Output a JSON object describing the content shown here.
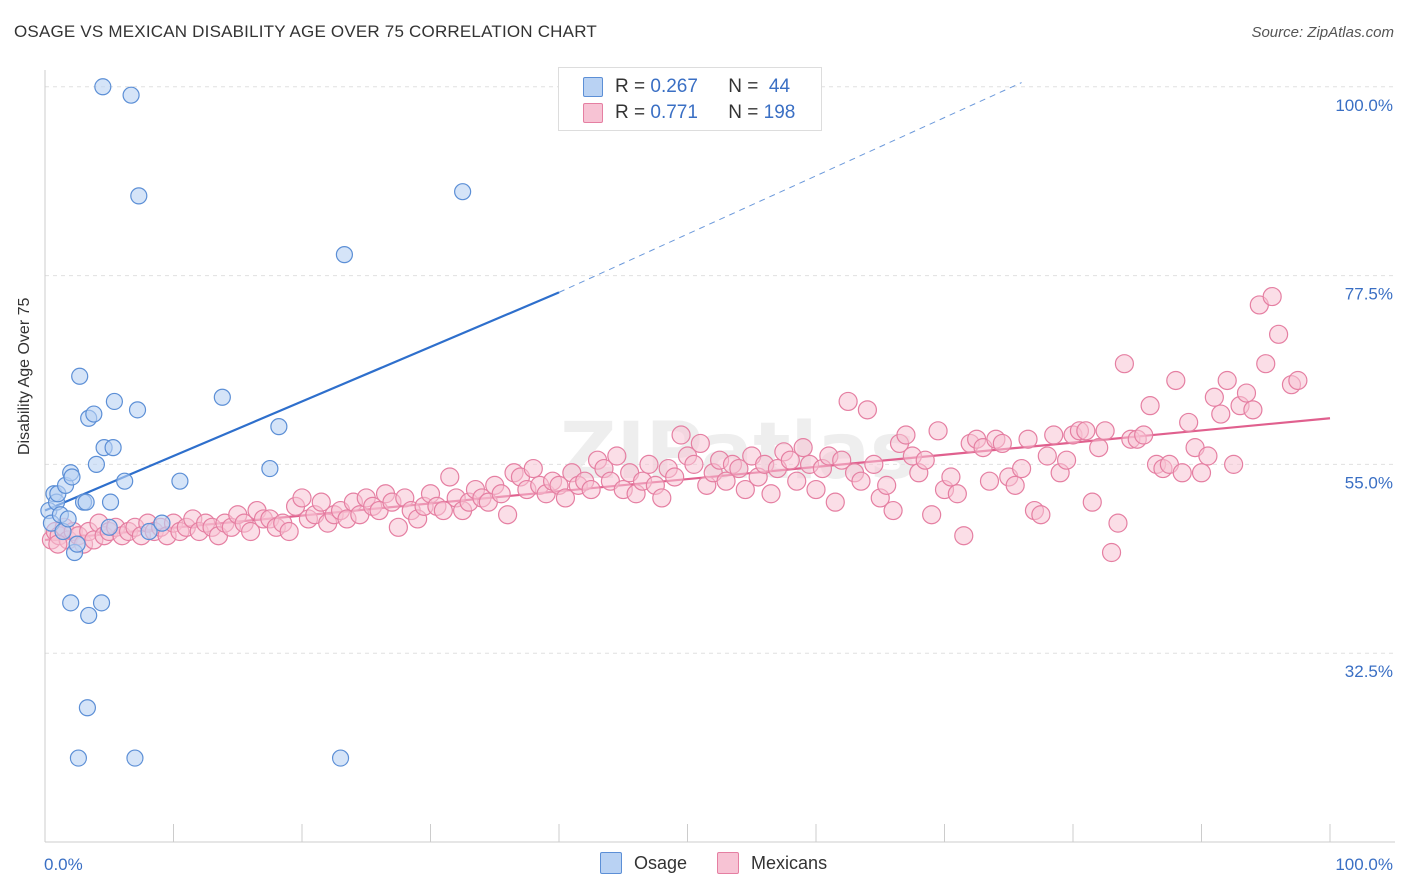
{
  "title": "OSAGE VS MEXICAN DISABILITY AGE OVER 75 CORRELATION CHART",
  "source": "Source: ZipAtlas.com",
  "watermark": "ZIPatlas",
  "legend": {
    "rows": [
      {
        "r_label": "R =",
        "r_value": "0.267",
        "n_label": "N =",
        "n_value": "44"
      },
      {
        "r_label": "R =",
        "r_value": "0.771",
        "n_label": "N =",
        "n_value": "198"
      }
    ]
  },
  "bottom_legend": {
    "osage": "Osage",
    "mexicans": "Mexicans"
  },
  "colors": {
    "osage_fill": "#b9d2f3",
    "osage_stroke": "#5c8fd6",
    "osage_line": "#2e6fcc",
    "mex_fill": "#f7c3d4",
    "mex_stroke": "#e57fa2",
    "mex_line": "#e0608e",
    "grid": "#e0e0e0",
    "tick_label": "#3a6fc4"
  },
  "chart_data": {
    "type": "scatter",
    "title": "OSAGE VS MEXICAN DISABILITY AGE OVER 75 CORRELATION CHART",
    "ylabel": "Disability Age Over 75",
    "xlabel": "",
    "xlim": [
      0,
      100
    ],
    "ylim": [
      10,
      102
    ],
    "x_tick_labels": [
      "0.0%",
      "100.0%"
    ],
    "y_ticks": [
      32.5,
      55.0,
      77.5,
      100.0
    ],
    "y_tick_labels": [
      "32.5%",
      "55.0%",
      "77.5%",
      "100.0%"
    ],
    "series": [
      {
        "name": "Osage",
        "points": [
          [
            0.3,
            49.5
          ],
          [
            0.5,
            48.0
          ],
          [
            0.7,
            51.5
          ],
          [
            0.9,
            50.5
          ],
          [
            1.0,
            51.5
          ],
          [
            1.2,
            49.0
          ],
          [
            1.4,
            47.0
          ],
          [
            1.6,
            52.5
          ],
          [
            1.8,
            48.5
          ],
          [
            2.0,
            54.0
          ],
          [
            2.1,
            53.5
          ],
          [
            2.3,
            44.5
          ],
          [
            2.5,
            45.5
          ],
          [
            2.7,
            65.5
          ],
          [
            3.0,
            50.5
          ],
          [
            3.2,
            50.5
          ],
          [
            3.4,
            60.5
          ],
          [
            3.8,
            61.0
          ],
          [
            4.0,
            55.0
          ],
          [
            4.4,
            38.5
          ],
          [
            4.6,
            57.0
          ],
          [
            5.1,
            50.5
          ],
          [
            5.3,
            57.0
          ],
          [
            5.4,
            62.5
          ],
          [
            6.2,
            53.0
          ],
          [
            7.2,
            61.5
          ],
          [
            8.1,
            47.0
          ],
          [
            9.1,
            48.0
          ],
          [
            10.5,
            53.0
          ],
          [
            13.8,
            63.0
          ],
          [
            17.5,
            54.5
          ],
          [
            18.2,
            59.5
          ],
          [
            2.0,
            38.5
          ],
          [
            3.4,
            37.0
          ],
          [
            3.3,
            26.0
          ],
          [
            2.6,
            20.0
          ],
          [
            7.0,
            20.0
          ],
          [
            23.0,
            20.0
          ],
          [
            4.5,
            100.0
          ],
          [
            6.7,
            99.0
          ],
          [
            7.3,
            87.0
          ],
          [
            23.3,
            80.0
          ],
          [
            32.5,
            87.5
          ],
          [
            5.0,
            47.5
          ]
        ],
        "trend": {
          "x0": 0,
          "y0": 49.5,
          "x1": 40,
          "y1": 75.5,
          "x_dash_end": 76,
          "y_dash_end": 100.5
        }
      },
      {
        "name": "Mexicans",
        "points": [
          [
            0.5,
            46.0
          ],
          [
            0.8,
            47.0
          ],
          [
            1.1,
            46.5
          ],
          [
            1.5,
            47.5
          ],
          [
            1.8,
            46.0
          ],
          [
            2.2,
            47.0
          ],
          [
            2.6,
            46.5
          ],
          [
            3.0,
            45.5
          ],
          [
            3.4,
            47.0
          ],
          [
            3.8,
            46.0
          ],
          [
            4.2,
            48.0
          ],
          [
            4.6,
            46.5
          ],
          [
            5.0,
            47.0
          ],
          [
            5.5,
            47.5
          ],
          [
            6.0,
            46.5
          ],
          [
            6.5,
            47.0
          ],
          [
            7.0,
            47.5
          ],
          [
            7.5,
            46.5
          ],
          [
            8.0,
            48.0
          ],
          [
            8.5,
            47.0
          ],
          [
            9.0,
            47.5
          ],
          [
            9.5,
            46.5
          ],
          [
            10.0,
            48.0
          ],
          [
            10.5,
            47.0
          ],
          [
            11.0,
            47.5
          ],
          [
            11.5,
            48.5
          ],
          [
            12.0,
            47.0
          ],
          [
            12.5,
            48.0
          ],
          [
            13.0,
            47.5
          ],
          [
            13.5,
            46.5
          ],
          [
            14.0,
            48.0
          ],
          [
            14.5,
            47.5
          ],
          [
            15.0,
            49.0
          ],
          [
            15.5,
            48.0
          ],
          [
            16.0,
            47.0
          ],
          [
            16.5,
            49.5
          ],
          [
            17.0,
            48.5
          ],
          [
            17.5,
            48.5
          ],
          [
            18.0,
            47.5
          ],
          [
            18.5,
            48.0
          ],
          [
            19.0,
            47.0
          ],
          [
            19.5,
            50.0
          ],
          [
            20.0,
            51.0
          ],
          [
            20.5,
            48.5
          ],
          [
            21.0,
            49.0
          ],
          [
            21.5,
            50.5
          ],
          [
            22.0,
            48.0
          ],
          [
            22.5,
            49.0
          ],
          [
            23.0,
            49.5
          ],
          [
            23.5,
            48.5
          ],
          [
            24.0,
            50.5
          ],
          [
            24.5,
            49.0
          ],
          [
            25.0,
            51.0
          ],
          [
            25.5,
            50.0
          ],
          [
            26.0,
            49.5
          ],
          [
            26.5,
            51.5
          ],
          [
            27.0,
            50.5
          ],
          [
            27.5,
            47.5
          ],
          [
            28.0,
            51.0
          ],
          [
            28.5,
            49.5
          ],
          [
            29.0,
            48.5
          ],
          [
            29.5,
            50.0
          ],
          [
            30.0,
            51.5
          ],
          [
            30.5,
            50.0
          ],
          [
            31.0,
            49.5
          ],
          [
            31.5,
            53.5
          ],
          [
            32.0,
            51.0
          ],
          [
            32.5,
            49.5
          ],
          [
            33.0,
            50.5
          ],
          [
            33.5,
            52.0
          ],
          [
            34.0,
            51.0
          ],
          [
            34.5,
            50.5
          ],
          [
            35.0,
            52.5
          ],
          [
            35.5,
            51.5
          ],
          [
            36.0,
            49.0
          ],
          [
            36.5,
            54.0
          ],
          [
            37.0,
            53.5
          ],
          [
            37.5,
            52.0
          ],
          [
            38.0,
            54.5
          ],
          [
            38.5,
            52.5
          ],
          [
            39.0,
            51.5
          ],
          [
            39.5,
            53.0
          ],
          [
            40.0,
            52.5
          ],
          [
            40.5,
            51.0
          ],
          [
            41.0,
            54.0
          ],
          [
            41.5,
            52.5
          ],
          [
            42.0,
            53.0
          ],
          [
            42.5,
            52.0
          ],
          [
            43.0,
            55.5
          ],
          [
            43.5,
            54.5
          ],
          [
            44.0,
            53.0
          ],
          [
            44.5,
            56.0
          ],
          [
            45.0,
            52.0
          ],
          [
            45.5,
            54.0
          ],
          [
            46.0,
            51.5
          ],
          [
            46.5,
            53.0
          ],
          [
            47.0,
            55.0
          ],
          [
            47.5,
            52.5
          ],
          [
            48.0,
            51.0
          ],
          [
            48.5,
            54.5
          ],
          [
            49.0,
            53.5
          ],
          [
            49.5,
            58.5
          ],
          [
            50.0,
            56.0
          ],
          [
            50.5,
            55.0
          ],
          [
            51.0,
            57.5
          ],
          [
            51.5,
            52.5
          ],
          [
            52.0,
            54.0
          ],
          [
            52.5,
            55.5
          ],
          [
            53.0,
            53.0
          ],
          [
            53.5,
            55.0
          ],
          [
            54.0,
            54.5
          ],
          [
            54.5,
            52.0
          ],
          [
            55.0,
            56.0
          ],
          [
            55.5,
            53.5
          ],
          [
            56.0,
            55.0
          ],
          [
            56.5,
            51.5
          ],
          [
            57.0,
            54.5
          ],
          [
            57.5,
            56.5
          ],
          [
            58.0,
            55.5
          ],
          [
            58.5,
            53.0
          ],
          [
            59.0,
            57.0
          ],
          [
            59.5,
            55.0
          ],
          [
            60.0,
            52.0
          ],
          [
            60.5,
            54.5
          ],
          [
            61.0,
            56.0
          ],
          [
            61.5,
            50.5
          ],
          [
            62.0,
            55.5
          ],
          [
            62.5,
            62.5
          ],
          [
            63.0,
            54.0
          ],
          [
            63.5,
            53.0
          ],
          [
            64.0,
            61.5
          ],
          [
            64.5,
            55.0
          ],
          [
            65.0,
            51.0
          ],
          [
            65.5,
            52.5
          ],
          [
            66.0,
            49.5
          ],
          [
            66.5,
            57.5
          ],
          [
            67.0,
            58.5
          ],
          [
            67.5,
            56.0
          ],
          [
            68.0,
            54.0
          ],
          [
            68.5,
            55.5
          ],
          [
            69.0,
            49.0
          ],
          [
            69.5,
            59.0
          ],
          [
            70.0,
            52.0
          ],
          [
            70.5,
            53.5
          ],
          [
            71.0,
            51.5
          ],
          [
            71.5,
            46.5
          ],
          [
            72.0,
            57.5
          ],
          [
            72.5,
            58.0
          ],
          [
            73.0,
            57.0
          ],
          [
            73.5,
            53.0
          ],
          [
            74.0,
            58.0
          ],
          [
            74.5,
            57.5
          ],
          [
            75.0,
            53.5
          ],
          [
            75.5,
            52.5
          ],
          [
            76.0,
            54.5
          ],
          [
            76.5,
            58.0
          ],
          [
            77.0,
            49.5
          ],
          [
            77.5,
            49.0
          ],
          [
            78.0,
            56.0
          ],
          [
            78.5,
            58.5
          ],
          [
            79.0,
            54.0
          ],
          [
            79.5,
            55.5
          ],
          [
            80.0,
            58.5
          ],
          [
            80.5,
            59.0
          ],
          [
            81.0,
            59.0
          ],
          [
            81.5,
            50.5
          ],
          [
            82.0,
            57.0
          ],
          [
            82.5,
            59.0
          ],
          [
            83.0,
            44.5
          ],
          [
            83.5,
            48.0
          ],
          [
            84.0,
            67.0
          ],
          [
            84.5,
            58.0
          ],
          [
            85.0,
            58.0
          ],
          [
            85.5,
            58.5
          ],
          [
            86.0,
            62.0
          ],
          [
            86.5,
            55.0
          ],
          [
            87.0,
            54.5
          ],
          [
            87.5,
            55.0
          ],
          [
            88.0,
            65.0
          ],
          [
            88.5,
            54.0
          ],
          [
            89.0,
            60.0
          ],
          [
            89.5,
            57.0
          ],
          [
            90.0,
            54.0
          ],
          [
            90.5,
            56.0
          ],
          [
            91.0,
            63.0
          ],
          [
            91.5,
            61.0
          ],
          [
            92.0,
            65.0
          ],
          [
            92.5,
            55.0
          ],
          [
            93.0,
            62.0
          ],
          [
            93.5,
            63.5
          ],
          [
            94.0,
            61.5
          ],
          [
            94.5,
            74.0
          ],
          [
            95.0,
            67.0
          ],
          [
            95.5,
            75.0
          ],
          [
            96.0,
            70.5
          ],
          [
            97.0,
            64.5
          ],
          [
            97.5,
            65.0
          ],
          [
            1.0,
            45.5
          ]
        ],
        "trend": {
          "x0": 0,
          "y0": 46.0,
          "x1": 100,
          "y1": 60.5
        }
      }
    ]
  }
}
